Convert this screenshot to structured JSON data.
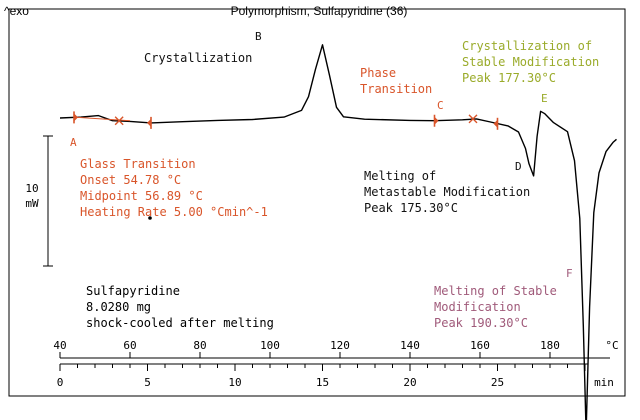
{
  "chart_data": {
    "type": "line",
    "title": "Polymorphism, Sulfapyridine (36)",
    "y_direction_label": "^exo",
    "scale_bar": {
      "value": "10",
      "unit": "mW"
    },
    "x_axis_temperature": {
      "unit": "°C",
      "ticks": [
        "40",
        "60",
        "80",
        "100",
        "120",
        "140",
        "160",
        "180"
      ]
    },
    "x_axis_time": {
      "unit": "min",
      "ticks": [
        "0",
        "5",
        "10",
        "15",
        "20",
        "25"
      ]
    },
    "series": [
      {
        "x": [
          40,
          46,
          51,
          55,
          60,
          66,
          75,
          85,
          95,
          104,
          109,
          111,
          113,
          115,
          117,
          119,
          121,
          127,
          140,
          147,
          155,
          159,
          163,
          168,
          171,
          173,
          174,
          175.3,
          176.3,
          177.3,
          178.5,
          181,
          185,
          187,
          188.5,
          189.5,
          190.3,
          191.3,
          192.5,
          194,
          196,
          198,
          199
        ],
        "y": [
          0,
          0.3,
          0.8,
          -0.9,
          -1.1,
          -1.6,
          -1.2,
          -0.8,
          -0.5,
          0.3,
          2.5,
          7,
          16,
          24,
          14,
          3.5,
          0.4,
          -0.4,
          -0.8,
          -0.9,
          -0.6,
          -0.3,
          -1.3,
          -2.6,
          -4.6,
          -10,
          -15,
          -19,
          -6,
          2.2,
          1.4,
          -1.5,
          -4.5,
          -14,
          -33,
          -68,
          -103,
          -62,
          -31,
          -18,
          -11,
          -8,
          -7
        ]
      }
    ],
    "annotations": [
      {
        "id": "A",
        "letter": "A",
        "lines": [
          "Glass Transition",
          "Onset     54.78 °C",
          "Midpoint 56.89 °C",
          "Heating Rate  5.00 °Cmin^-1"
        ]
      },
      {
        "id": "B",
        "letter": "B",
        "lines": [
          "Crystallization"
        ]
      },
      {
        "id": "C",
        "letter": "C",
        "lines": [
          "Phase",
          "Transition"
        ]
      },
      {
        "id": "D",
        "letter": "D",
        "lines": [
          "Melting of",
          "Metastable Modification",
          "Peak 175.30°C"
        ]
      },
      {
        "id": "E",
        "letter": "E",
        "lines": [
          "Crystallization of",
          "Stable Modification",
          "Peak 177.30°C"
        ]
      },
      {
        "id": "F",
        "letter": "F",
        "lines": [
          "Melting of Stable",
          "Modification",
          "Peak 190.30°C"
        ]
      }
    ],
    "sample_info": [
      "Sulfapyridine",
      "8.0280 mg",
      "shock-cooled after melting"
    ],
    "grid": false,
    "colors": {
      "curve": "#000000",
      "markers": "#d9552a",
      "A": "#d9552a",
      "B": "#111111",
      "C": "#d9552a",
      "D": "#111111",
      "E": "#9aab2a",
      "F": "#a05a7a"
    }
  }
}
